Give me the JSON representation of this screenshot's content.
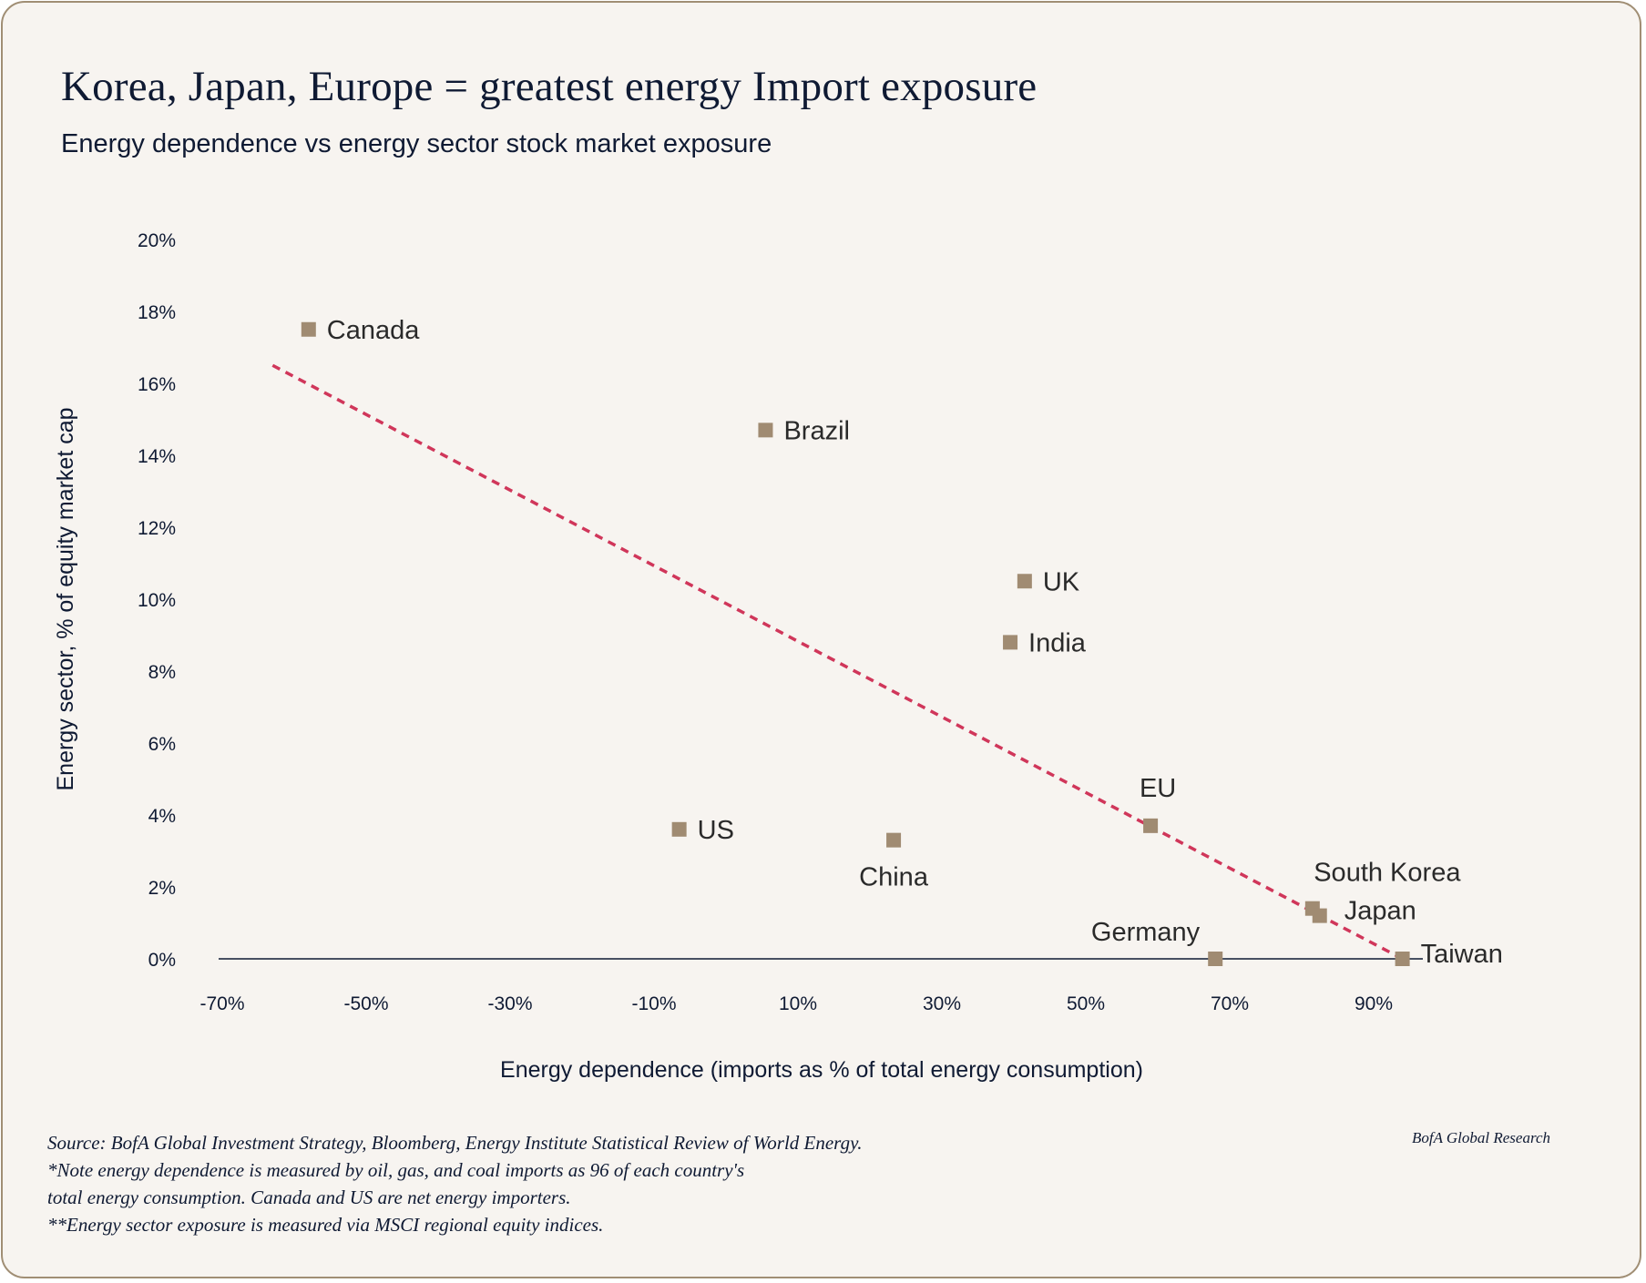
{
  "header": {
    "title": "Korea, Japan, Europe = greatest energy Import exposure",
    "subtitle": "Energy dependence vs energy sector stock market exposure"
  },
  "footer": {
    "notes": [
      "Source: BofA Global Investment Strategy, Bloomberg, Energy Institute Statistical Review of World Energy.",
      "*Note energy dependence is measured by oil, gas, and coal imports as 96 of each country's",
      "total energy consumption. Canada and US are net energy importers.",
      "**Energy sector exposure is measured via MSCI regional equity indices."
    ],
    "brand": "BofA Global Research"
  },
  "colors": {
    "marker": "#a08b72",
    "trendline": "#d0365a",
    "axis": "#0f1a33"
  },
  "chart_data": {
    "type": "scatter",
    "title": "Korea, Japan, Europe = greatest energy Import exposure",
    "subtitle": "Energy dependence vs energy sector stock market exposure",
    "xlabel": "Energy dependence (imports as % of total energy consumption)",
    "ylabel": "Energy sector, % of equity market cap",
    "xlim": [
      -75,
      105
    ],
    "ylim": [
      0,
      20
    ],
    "x_ticks": [
      -70,
      -50,
      -30,
      -10,
      10,
      30,
      50,
      70,
      90
    ],
    "x_tick_labels": [
      "-70%",
      "-50%",
      "-30%",
      "-10%",
      "10%",
      "30%",
      "50%",
      "70%",
      "90%"
    ],
    "y_ticks": [
      0,
      2,
      4,
      6,
      8,
      10,
      12,
      14,
      16,
      18,
      20
    ],
    "y_tick_labels": [
      "0%",
      "2%",
      "4%",
      "6%",
      "8%",
      "10%",
      "12%",
      "14%",
      "16%",
      "18%",
      "20%"
    ],
    "grid": false,
    "points": [
      {
        "label": "Canada",
        "x": -58,
        "y": 17.5,
        "label_pos": "right"
      },
      {
        "label": "Brazil",
        "x": 5.5,
        "y": 14.7,
        "label_pos": "right"
      },
      {
        "label": "UK",
        "x": 41.5,
        "y": 10.5,
        "label_pos": "right"
      },
      {
        "label": "India",
        "x": 39.5,
        "y": 8.8,
        "label_pos": "right"
      },
      {
        "label": "EU",
        "x": 59,
        "y": 3.7,
        "label_pos": "above"
      },
      {
        "label": "US",
        "x": -6.5,
        "y": 3.6,
        "label_pos": "right"
      },
      {
        "label": "China",
        "x": 23.3,
        "y": 3.3,
        "label_pos": "below"
      },
      {
        "label": "South Korea",
        "x": 81.5,
        "y": 1.4,
        "label_pos": "above"
      },
      {
        "label": "Japan",
        "x": 82.5,
        "y": 1.2,
        "label_pos": "right"
      },
      {
        "label": "Germany",
        "x": 68,
        "y": 0,
        "label_pos": "above-left"
      },
      {
        "label": "Taiwan",
        "x": 94,
        "y": 0,
        "label_pos": "right"
      }
    ],
    "trendline": {
      "style": "dashed",
      "from": {
        "x": -63,
        "y": 16.5
      },
      "to": {
        "x": 94,
        "y": 0
      }
    },
    "legend": "none"
  }
}
